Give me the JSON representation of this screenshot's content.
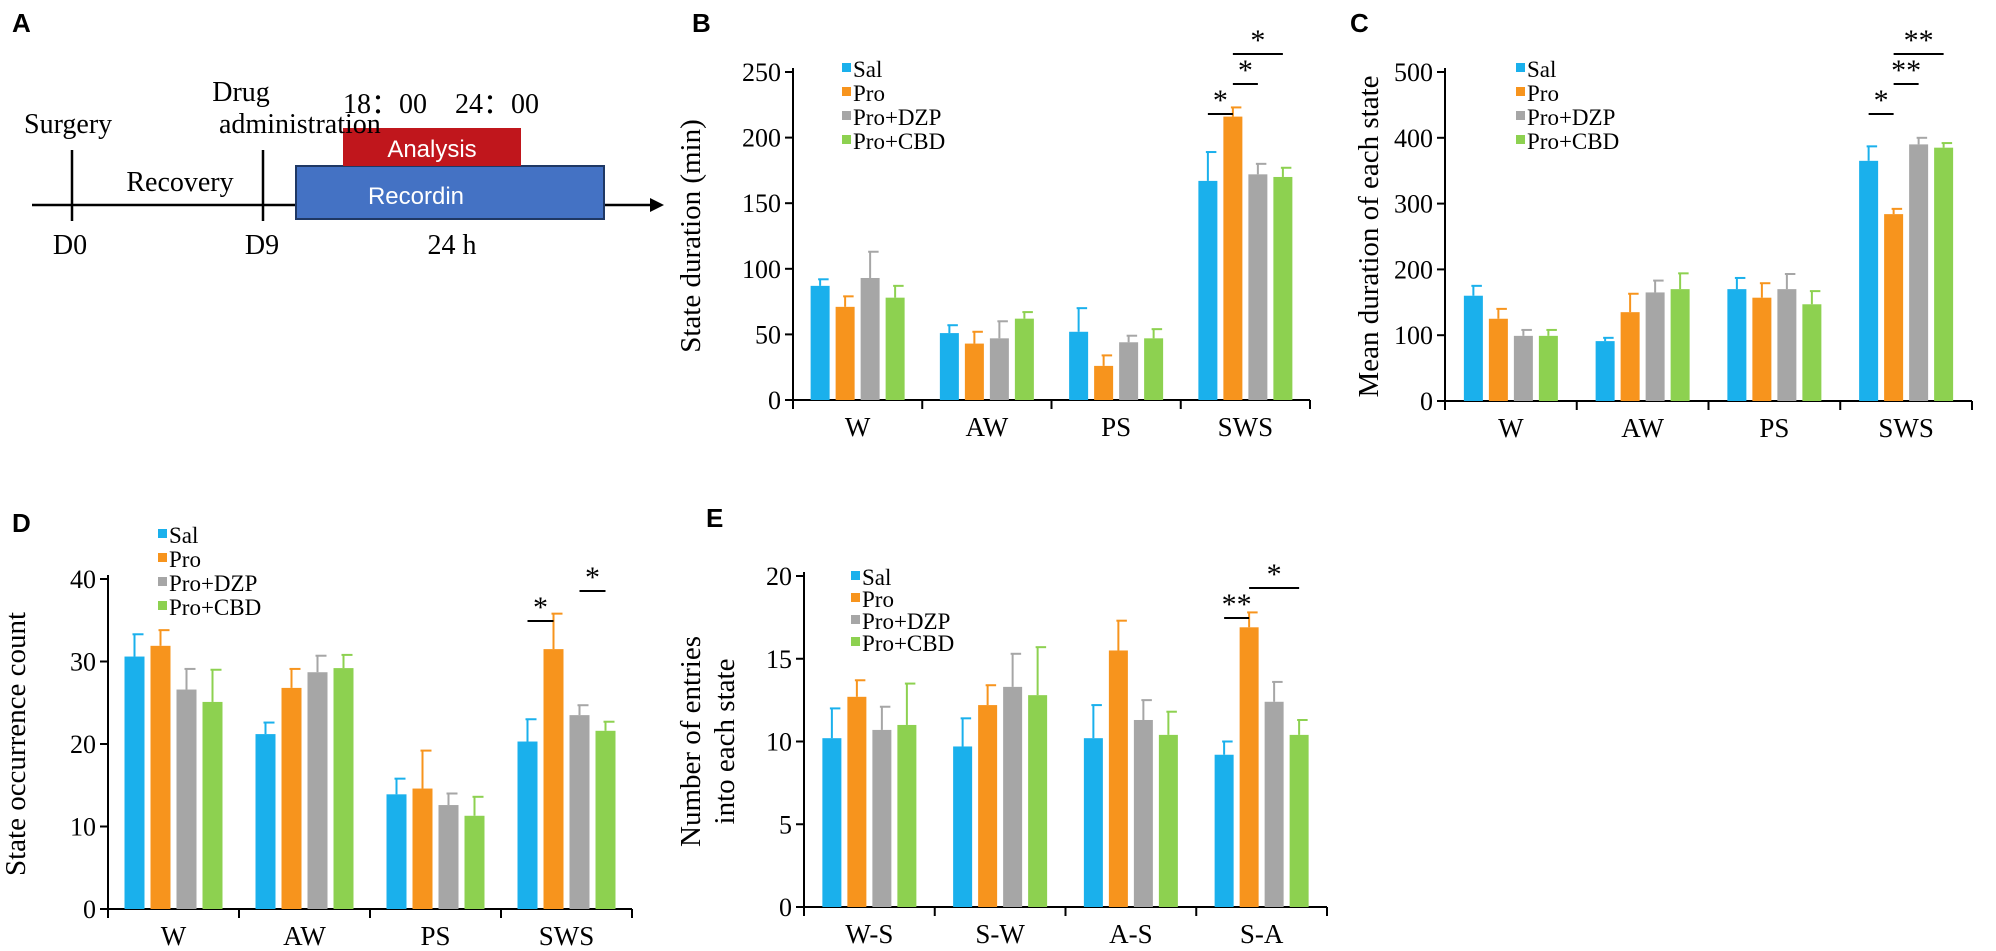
{
  "panel_letters": [
    "A",
    "B",
    "C",
    "D",
    "E"
  ],
  "timeline": {
    "events": [
      "Surgery",
      "Drug",
      "administration",
      "Recovery"
    ],
    "times": [
      "18：00",
      "24：00"
    ],
    "boxes": [
      "Analysis",
      "Recordin"
    ],
    "day_labels": [
      "D0",
      "D9"
    ],
    "duration_label": "24 h",
    "colors": {
      "analysis": "#c0161c",
      "recording": "#4472c4"
    }
  },
  "series_colors": [
    "#1ab0ec",
    "#f7941d",
    "#a6a6a6",
    "#8dd150"
  ],
  "chart_data": [
    {
      "id": "B",
      "type": "bar",
      "ylabel": "State duration (min)",
      "ylim": [
        0,
        250
      ],
      "yticks": [
        0,
        50,
        100,
        150,
        200,
        250
      ],
      "categories": [
        "W",
        "AW",
        "PS",
        "SWS"
      ],
      "legend": "top-left",
      "series": [
        {
          "name": "Sal",
          "values": [
            87,
            51,
            52,
            167
          ],
          "errors": [
            5,
            6,
            18,
            22
          ]
        },
        {
          "name": "Pro",
          "values": [
            71,
            43,
            26,
            216
          ],
          "errors": [
            8,
            9,
            8,
            7
          ]
        },
        {
          "name": "Pro+DZP",
          "values": [
            93,
            47,
            44,
            172
          ],
          "errors": [
            20,
            13,
            5,
            8
          ]
        },
        {
          "name": "Pro+CBD",
          "values": [
            78,
            62,
            47,
            170
          ],
          "errors": [
            9,
            5,
            7,
            7
          ]
        }
      ],
      "annotations": [
        {
          "text": "*",
          "cat": 3,
          "from": 0,
          "to": 1,
          "level": 1
        },
        {
          "text": "*",
          "cat": 3,
          "from": 1,
          "to": 2,
          "level": 2
        },
        {
          "text": "*",
          "cat": 3,
          "from": 1,
          "to": 3,
          "level": 3
        }
      ]
    },
    {
      "id": "C",
      "type": "bar",
      "ylabel": "Mean duration of each state",
      "ylim": [
        0,
        500
      ],
      "yticks": [
        0,
        100,
        200,
        300,
        400,
        500
      ],
      "categories": [
        "W",
        "AW",
        "PS",
        "SWS"
      ],
      "legend": "top-left",
      "series": [
        {
          "name": "Sal",
          "values": [
            160,
            91,
            170,
            365
          ],
          "errors": [
            15,
            5,
            17,
            22
          ]
        },
        {
          "name": "Pro",
          "values": [
            125,
            135,
            157,
            284
          ],
          "errors": [
            15,
            28,
            22,
            8
          ]
        },
        {
          "name": "Pro+DZP",
          "values": [
            99,
            165,
            170,
            390
          ],
          "errors": [
            9,
            18,
            23,
            10
          ]
        },
        {
          "name": "Pro+CBD",
          "values": [
            99,
            170,
            147,
            385
          ],
          "errors": [
            9,
            24,
            20,
            7
          ]
        }
      ],
      "annotations": [
        {
          "text": "*",
          "cat": 3,
          "from": 0,
          "to": 1,
          "level": 1
        },
        {
          "text": "**",
          "cat": 3,
          "from": 1,
          "to": 2,
          "level": 2
        },
        {
          "text": "**",
          "cat": 3,
          "from": 1,
          "to": 3,
          "level": 3
        }
      ]
    },
    {
      "id": "D",
      "type": "bar",
      "ylabel": "State occurrence count",
      "ylim": [
        0,
        40
      ],
      "yticks": [
        0,
        10,
        20,
        30,
        40
      ],
      "categories": [
        "W",
        "AW",
        "PS",
        "SWS"
      ],
      "legend": "top-left",
      "series": [
        {
          "name": "Sal",
          "values": [
            30.6,
            21.2,
            13.9,
            20.3
          ],
          "errors": [
            2.7,
            1.4,
            1.9,
            2.7
          ]
        },
        {
          "name": "Pro",
          "values": [
            31.9,
            26.8,
            14.6,
            31.5
          ],
          "errors": [
            1.9,
            2.3,
            4.6,
            4.3
          ]
        },
        {
          "name": "Pro+DZP",
          "values": [
            26.6,
            28.7,
            12.6,
            23.5
          ],
          "errors": [
            2.5,
            2.0,
            1.4,
            1.2
          ]
        },
        {
          "name": "Pro+CBD",
          "values": [
            25.1,
            29.2,
            11.3,
            21.6
          ],
          "errors": [
            3.9,
            1.6,
            2.3,
            1.1
          ]
        }
      ],
      "annotations": [
        {
          "text": "*",
          "cat": 3,
          "from": 0,
          "to": 1,
          "level": 1
        },
        {
          "text": "*",
          "cat": 3,
          "from": 2,
          "to": 3,
          "level": 2
        }
      ]
    },
    {
      "id": "E",
      "type": "bar",
      "ylabel": [
        "Number of entries",
        "into each state"
      ],
      "ylim": [
        0,
        20
      ],
      "yticks": [
        0,
        5,
        10,
        15,
        20
      ],
      "categories": [
        "W-S",
        "S-W",
        "A-S",
        "S-A"
      ],
      "legend": "top-left",
      "series": [
        {
          "name": "Sal",
          "values": [
            10.2,
            9.7,
            10.2,
            9.2
          ],
          "errors": [
            1.8,
            1.7,
            2.0,
            0.8
          ]
        },
        {
          "name": "Pro",
          "values": [
            12.7,
            12.2,
            15.5,
            16.9
          ],
          "errors": [
            1.0,
            1.2,
            1.8,
            0.9
          ]
        },
        {
          "name": "Pro+DZP",
          "values": [
            10.7,
            13.3,
            11.3,
            12.4
          ],
          "errors": [
            1.4,
            2.0,
            1.2,
            1.2
          ]
        },
        {
          "name": "Pro+CBD",
          "values": [
            11.0,
            12.8,
            10.4,
            10.4
          ],
          "errors": [
            2.5,
            2.9,
            1.4,
            0.9
          ]
        }
      ],
      "annotations": [
        {
          "text": "**",
          "cat": 3,
          "from": 0,
          "to": 1,
          "level": 1
        },
        {
          "text": "*",
          "cat": 3,
          "from": 1,
          "to": 3,
          "level": 2
        }
      ]
    }
  ]
}
